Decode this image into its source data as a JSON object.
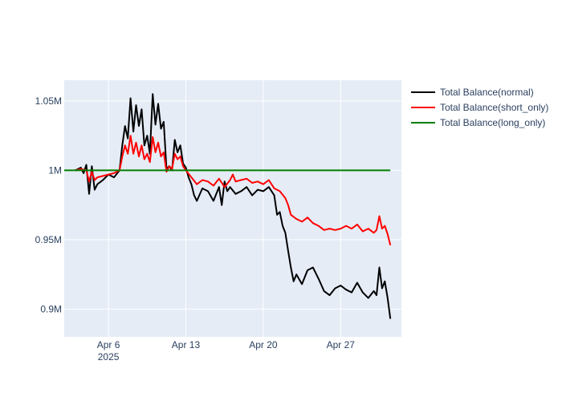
{
  "chart_data": {
    "type": "line",
    "title": "",
    "xlabel": "",
    "ylabel": "",
    "x_range": [
      "2025-04-02",
      "2025-05-02T12:00"
    ],
    "ylim": [
      880000,
      1065000
    ],
    "grid": true,
    "legend_position": "top-right",
    "x_ticks": [
      {
        "date": "2025-04-06",
        "label": "Apr 6",
        "sublabel": "2025"
      },
      {
        "date": "2025-04-13",
        "label": "Apr 13",
        "sublabel": ""
      },
      {
        "date": "2025-04-20",
        "label": "Apr 20",
        "sublabel": ""
      },
      {
        "date": "2025-04-27",
        "label": "Apr 27",
        "sublabel": ""
      }
    ],
    "y_ticks": [
      {
        "value": 900000,
        "label": "0.9M"
      },
      {
        "value": 950000,
        "label": "0.95M"
      },
      {
        "value": 1000000,
        "label": "1M"
      },
      {
        "value": 1050000,
        "label": "1.05M"
      }
    ],
    "series": [
      {
        "name": "Total Balance(normal)",
        "color": "#000000",
        "points": [
          [
            "2025-04-03",
            1000000
          ],
          [
            "2025-04-03T12:00",
            1002000
          ],
          [
            "2025-04-03T18:00",
            998000
          ],
          [
            "2025-04-04",
            1004000
          ],
          [
            "2025-04-04T06:00",
            983000
          ],
          [
            "2025-04-04T12:00",
            1003000
          ],
          [
            "2025-04-04T18:00",
            986000
          ],
          [
            "2025-04-05",
            990000
          ],
          [
            "2025-04-05T12:00",
            993000
          ],
          [
            "2025-04-06",
            997000
          ],
          [
            "2025-04-06T12:00",
            995000
          ],
          [
            "2025-04-07",
            1000000
          ],
          [
            "2025-04-07T06:00",
            1018000
          ],
          [
            "2025-04-07T12:00",
            1032000
          ],
          [
            "2025-04-07T18:00",
            1023000
          ],
          [
            "2025-04-08",
            1052000
          ],
          [
            "2025-04-08T06:00",
            1028000
          ],
          [
            "2025-04-08T12:00",
            1047000
          ],
          [
            "2025-04-08T18:00",
            1032000
          ],
          [
            "2025-04-09",
            1044000
          ],
          [
            "2025-04-09T06:00",
            1018000
          ],
          [
            "2025-04-09T12:00",
            1025000
          ],
          [
            "2025-04-09T18:00",
            1012000
          ],
          [
            "2025-04-10",
            1055000
          ],
          [
            "2025-04-10T06:00",
            1033000
          ],
          [
            "2025-04-10T12:00",
            1048000
          ],
          [
            "2025-04-10T18:00",
            1030000
          ],
          [
            "2025-04-11",
            1035000
          ],
          [
            "2025-04-11T06:00",
            1001000
          ],
          [
            "2025-04-11T12:00",
            1003000
          ],
          [
            "2025-04-11T18:00",
            1000000
          ],
          [
            "2025-04-12",
            1022000
          ],
          [
            "2025-04-12T06:00",
            1013000
          ],
          [
            "2025-04-12T12:00",
            1018000
          ],
          [
            "2025-04-12T18:00",
            1005000
          ],
          [
            "2025-04-13",
            1002000
          ],
          [
            "2025-04-13T06:00",
            995000
          ],
          [
            "2025-04-13T12:00",
            990000
          ],
          [
            "2025-04-13T18:00",
            982000
          ],
          [
            "2025-04-14",
            978000
          ],
          [
            "2025-04-14T12:00",
            987000
          ],
          [
            "2025-04-15",
            985000
          ],
          [
            "2025-04-15T12:00",
            978000
          ],
          [
            "2025-04-16",
            988000
          ],
          [
            "2025-04-16T06:00",
            975000
          ],
          [
            "2025-04-16T12:00",
            992000
          ],
          [
            "2025-04-16T18:00",
            985000
          ],
          [
            "2025-04-17",
            988000
          ],
          [
            "2025-04-17T12:00",
            983000
          ],
          [
            "2025-04-18",
            985000
          ],
          [
            "2025-04-18T12:00",
            988000
          ],
          [
            "2025-04-19",
            982000
          ],
          [
            "2025-04-19T12:00",
            986000
          ],
          [
            "2025-04-20",
            985000
          ],
          [
            "2025-04-20T12:00",
            988000
          ],
          [
            "2025-04-21",
            982000
          ],
          [
            "2025-04-21T06:00",
            968000
          ],
          [
            "2025-04-21T12:00",
            970000
          ],
          [
            "2025-04-21T18:00",
            960000
          ],
          [
            "2025-04-22",
            955000
          ],
          [
            "2025-04-22T06:00",
            942000
          ],
          [
            "2025-04-22T12:00",
            930000
          ],
          [
            "2025-04-22T18:00",
            920000
          ],
          [
            "2025-04-23",
            925000
          ],
          [
            "2025-04-23T12:00",
            918000
          ],
          [
            "2025-04-24",
            928000
          ],
          [
            "2025-04-24T12:00",
            930000
          ],
          [
            "2025-04-25",
            922000
          ],
          [
            "2025-04-25T12:00",
            913000
          ],
          [
            "2025-04-26",
            910000
          ],
          [
            "2025-04-26T12:00",
            915000
          ],
          [
            "2025-04-27",
            917000
          ],
          [
            "2025-04-27T12:00",
            914000
          ],
          [
            "2025-04-28",
            912000
          ],
          [
            "2025-04-28T12:00",
            919000
          ],
          [
            "2025-04-29",
            912000
          ],
          [
            "2025-04-29T12:00",
            908000
          ],
          [
            "2025-04-30",
            913000
          ],
          [
            "2025-04-30T06:00",
            910000
          ],
          [
            "2025-04-30T12:00",
            930000
          ],
          [
            "2025-04-30T18:00",
            915000
          ],
          [
            "2025-05-01",
            920000
          ],
          [
            "2025-05-01T06:00",
            908000
          ],
          [
            "2025-05-01T12:00",
            893000
          ]
        ]
      },
      {
        "name": "Total Balance(short_only)",
        "color": "#ff0000",
        "points": [
          [
            "2025-04-03",
            1000000
          ],
          [
            "2025-04-03T12:00",
            1001000
          ],
          [
            "2025-04-04",
            1000000
          ],
          [
            "2025-04-04T06:00",
            992000
          ],
          [
            "2025-04-04T12:00",
            999000
          ],
          [
            "2025-04-04T18:00",
            993000
          ],
          [
            "2025-04-05",
            995000
          ],
          [
            "2025-04-05T12:00",
            996000
          ],
          [
            "2025-04-06",
            997000
          ],
          [
            "2025-04-06T12:00",
            998000
          ],
          [
            "2025-04-07",
            1000000
          ],
          [
            "2025-04-07T06:00",
            1010000
          ],
          [
            "2025-04-07T12:00",
            1018000
          ],
          [
            "2025-04-07T18:00",
            1012000
          ],
          [
            "2025-04-08",
            1025000
          ],
          [
            "2025-04-08T06:00",
            1012000
          ],
          [
            "2025-04-08T12:00",
            1020000
          ],
          [
            "2025-04-08T18:00",
            1010000
          ],
          [
            "2025-04-09",
            1018000
          ],
          [
            "2025-04-09T06:00",
            1008000
          ],
          [
            "2025-04-09T12:00",
            1012000
          ],
          [
            "2025-04-09T18:00",
            1006000
          ],
          [
            "2025-04-10",
            1024000
          ],
          [
            "2025-04-10T06:00",
            1013000
          ],
          [
            "2025-04-10T12:00",
            1020000
          ],
          [
            "2025-04-10T18:00",
            1010000
          ],
          [
            "2025-04-11",
            1013000
          ],
          [
            "2025-04-11T06:00",
            999000
          ],
          [
            "2025-04-11T12:00",
            1003000
          ],
          [
            "2025-04-11T18:00",
            1001000
          ],
          [
            "2025-04-12",
            1012000
          ],
          [
            "2025-04-12T06:00",
            1008000
          ],
          [
            "2025-04-12T12:00",
            1010000
          ],
          [
            "2025-04-12T18:00",
            1003000
          ],
          [
            "2025-04-13",
            1000000
          ],
          [
            "2025-04-13T12:00",
            995000
          ],
          [
            "2025-04-14",
            990000
          ],
          [
            "2025-04-14T12:00",
            993000
          ],
          [
            "2025-04-15",
            992000
          ],
          [
            "2025-04-15T12:00",
            989000
          ],
          [
            "2025-04-16",
            994000
          ],
          [
            "2025-04-16T12:00",
            988000
          ],
          [
            "2025-04-17",
            993000
          ],
          [
            "2025-04-17T06:00",
            997000
          ],
          [
            "2025-04-17T12:00",
            992000
          ],
          [
            "2025-04-18",
            993000
          ],
          [
            "2025-04-18T12:00",
            994000
          ],
          [
            "2025-04-19",
            991000
          ],
          [
            "2025-04-19T12:00",
            992000
          ],
          [
            "2025-04-20",
            990000
          ],
          [
            "2025-04-20T12:00",
            993000
          ],
          [
            "2025-04-21",
            987000
          ],
          [
            "2025-04-21T12:00",
            985000
          ],
          [
            "2025-04-22",
            980000
          ],
          [
            "2025-04-22T06:00",
            975000
          ],
          [
            "2025-04-22T12:00",
            968000
          ],
          [
            "2025-04-23",
            965000
          ],
          [
            "2025-04-23T12:00",
            963000
          ],
          [
            "2025-04-24",
            966000
          ],
          [
            "2025-04-24T12:00",
            962000
          ],
          [
            "2025-04-25",
            960000
          ],
          [
            "2025-04-25T12:00",
            957000
          ],
          [
            "2025-04-26",
            958000
          ],
          [
            "2025-04-26T12:00",
            957000
          ],
          [
            "2025-04-27",
            958000
          ],
          [
            "2025-04-27T12:00",
            960000
          ],
          [
            "2025-04-28",
            958000
          ],
          [
            "2025-04-28T12:00",
            961000
          ],
          [
            "2025-04-29",
            956000
          ],
          [
            "2025-04-29T12:00",
            958000
          ],
          [
            "2025-04-30",
            955000
          ],
          [
            "2025-04-30T06:00",
            957000
          ],
          [
            "2025-04-30T12:00",
            967000
          ],
          [
            "2025-04-30T18:00",
            958000
          ],
          [
            "2025-05-01",
            960000
          ],
          [
            "2025-05-01T06:00",
            954000
          ],
          [
            "2025-05-01T12:00",
            946000
          ]
        ]
      },
      {
        "name": "Total Balance(long_only)",
        "color": "#008000",
        "points": [
          [
            "2025-04-02",
            1000000
          ],
          [
            "2025-05-01T12:00",
            1000000
          ]
        ]
      }
    ]
  }
}
